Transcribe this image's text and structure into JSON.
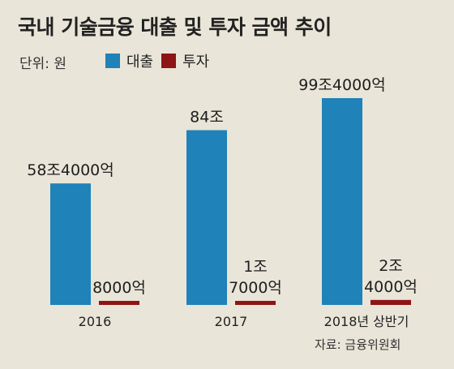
{
  "title": "국내 기술금융 대출 및 투자 금액 추이",
  "unit_label": "단위: 원",
  "source": "자료: 금융위원회",
  "colors": {
    "loan": "#1f82b8",
    "invest": "#8e1515",
    "background": "#e9e5d8"
  },
  "chart_data": {
    "type": "bar",
    "categories": [
      "2016",
      "2017",
      "2018년 상반기"
    ],
    "series": [
      {
        "name": "대출",
        "values": [
          584000,
          840000,
          994000
        ],
        "labels": [
          "58조4000억",
          "84조",
          "99조4000억"
        ]
      },
      {
        "name": "투자",
        "values": [
          8000,
          17000,
          24000
        ],
        "labels": [
          "8000억",
          "1조\n7000억",
          "2조\n4000억"
        ]
      }
    ],
    "value_unit": "억원",
    "legend_position": "top-left",
    "grid": false
  }
}
